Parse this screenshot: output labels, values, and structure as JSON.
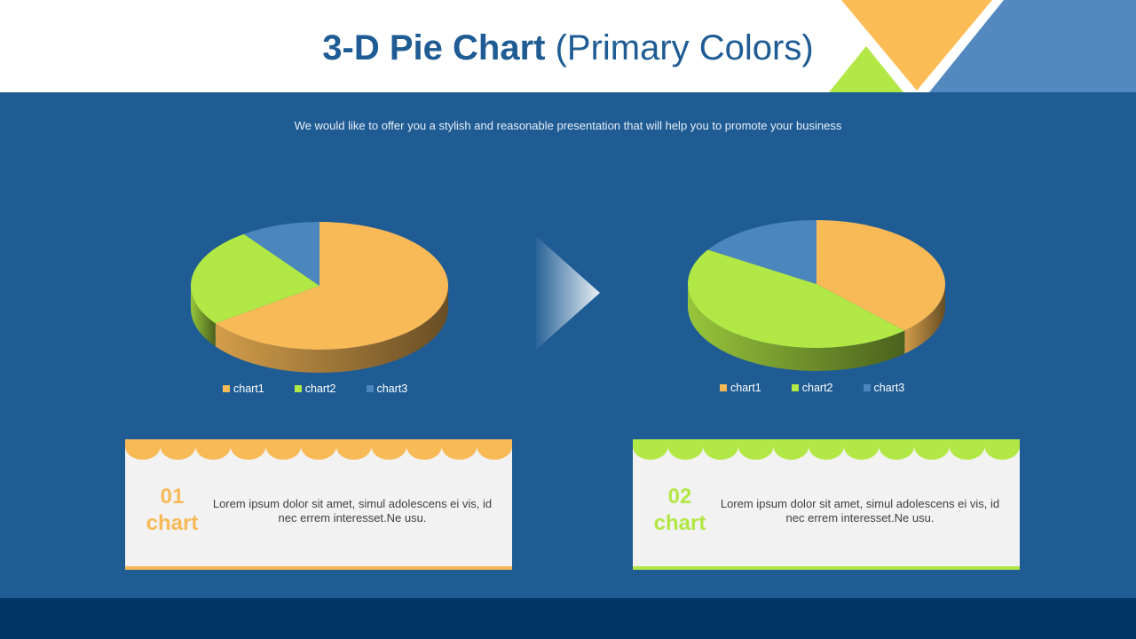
{
  "title_bold": "3-D Pie Chart",
  "title_rest": "(Primary Colors)",
  "subtitle": "We would like to offer you a stylish and reasonable presentation that will help you to promote your business",
  "colors": {
    "orange": "#f8b957",
    "green": "#b2e845",
    "blue": "#4b86bd",
    "background": "#1f5c94",
    "footer": "#003665"
  },
  "arrow_icon": "chevron-right-icon",
  "chart_data": [
    {
      "type": "pie",
      "categories": [
        "chart1",
        "chart2",
        "chart3"
      ],
      "values": [
        65,
        25,
        10
      ],
      "colors": [
        "#f8b957",
        "#b2e845",
        "#4b86bd"
      ],
      "legend": [
        "chart1",
        "chart2",
        "chart3"
      ],
      "legend_position": "bottom"
    },
    {
      "type": "pie",
      "categories": [
        "chart1",
        "chart2",
        "chart3"
      ],
      "values": [
        38,
        46,
        16
      ],
      "colors": [
        "#f8b957",
        "#b2e845",
        "#4b86bd"
      ],
      "legend": [
        "chart1",
        "chart2",
        "chart3"
      ],
      "legend_position": "bottom"
    }
  ],
  "cards": [
    {
      "number": "01",
      "label": "chart",
      "text": "Lorem ipsum dolor sit amet, simul adolescens ei vis, id nec errem interesset.Ne usu.",
      "color": "#f8b957"
    },
    {
      "number": "02",
      "label": "chart",
      "text": "Lorem ipsum dolor sit amet, simul adolescens ei vis, id nec errem interesset.Ne usu.",
      "color": "#b2e845"
    }
  ]
}
